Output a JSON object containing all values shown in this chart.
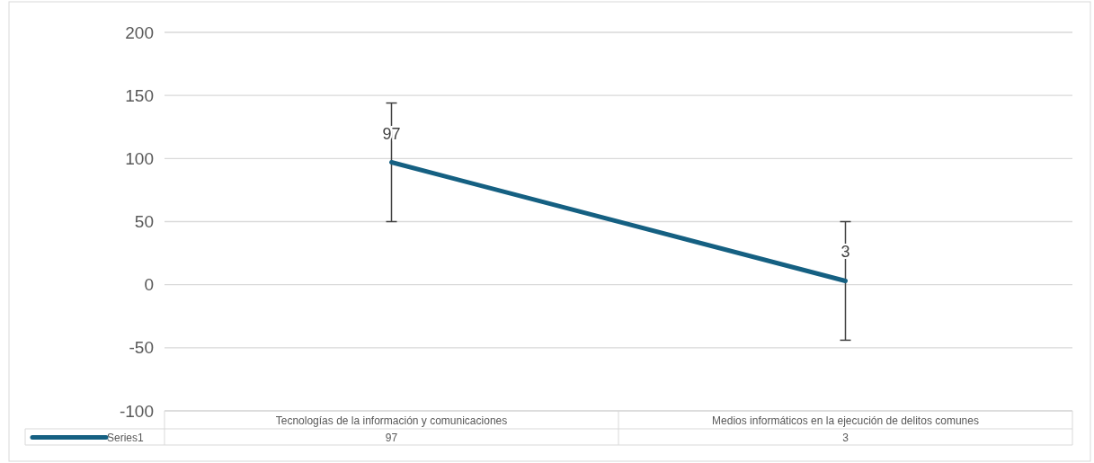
{
  "chart_data": {
    "type": "line",
    "categories": [
      "Tecnologías de la información y comunicaciones",
      "Medios informáticos en la ejecución de delitos comunes"
    ],
    "series": [
      {
        "name": "Series1",
        "color": "#156082",
        "values": [
          97,
          3
        ],
        "errors": [
          47,
          47
        ]
      }
    ],
    "annotations": [
      {
        "text": "97",
        "x": "Tecnologías de la información y comunicaciones",
        "y": 97
      },
      {
        "text": "3",
        "x": "Medios informáticos en la ejecución de delitos comunes",
        "y": 3
      }
    ],
    "ylim": [
      -100,
      200
    ],
    "yticks": [
      -100,
      -50,
      0,
      50,
      100,
      150,
      200
    ],
    "grid": "y",
    "data_labels": true,
    "legend": "bottom",
    "marker": "none",
    "line_style": "solid"
  }
}
